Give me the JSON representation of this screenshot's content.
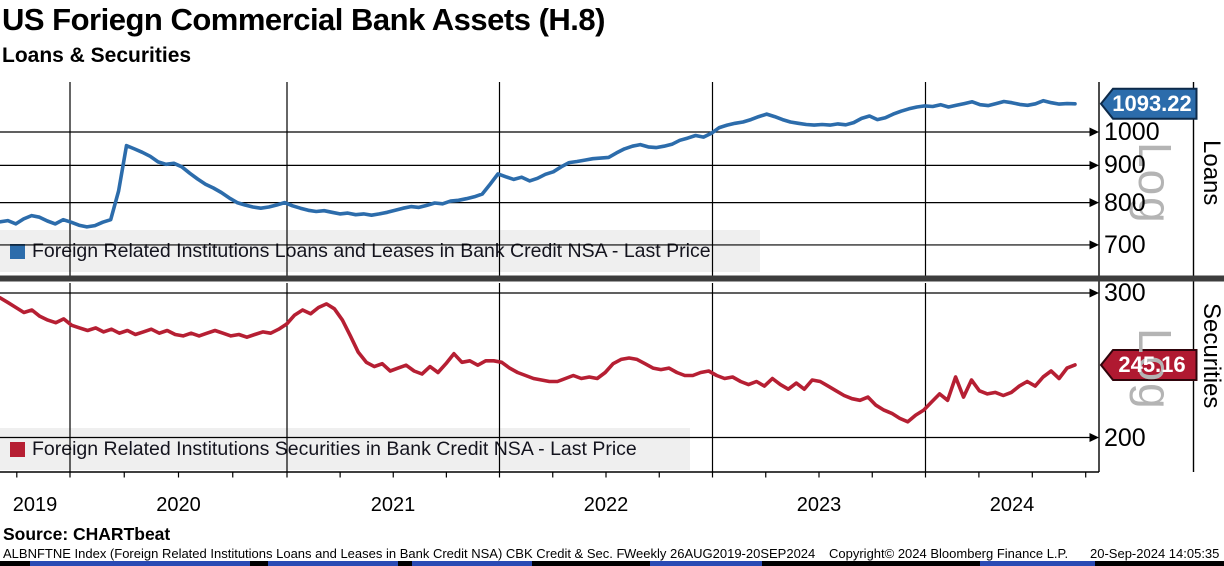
{
  "header": {
    "title": "US Foriegn Commercial Bank Assets (H.8)",
    "subtitle": "Loans & Securities"
  },
  "x_axis": {
    "years": [
      "2019",
      "2020",
      "2021",
      "2022",
      "2023",
      "2024"
    ]
  },
  "footer": {
    "source": "Source: CHARTbeat",
    "fine_print": "ALBNFTNE Index (Foreign Related Institutions Loans and Leases in Bank Credit NSA) CBK Credit & Sec. F",
    "period": "Weekly 26AUG2019-20SEP2024",
    "copyright": "Copyright© 2024 Bloomberg Finance L.P.",
    "timestamp": "20-Sep-2024 14:05:35"
  },
  "chart_data": [
    {
      "type": "line",
      "name": "loans",
      "legend": "Foreign Related Institutions Loans and Leases in Bank Credit NSA - Last Price",
      "axis_label": "Loans",
      "scale": "Log",
      "color": "#2c6cab",
      "flag_fill": "#2c6cab",
      "flag_border": "#0d2a4a",
      "last_price": 1093.22,
      "last_price_label": "1093.22",
      "yticks": [
        1000,
        900,
        800,
        700
      ],
      "ylog": true,
      "frequency": "Weekly",
      "x_start": "26AUG2019",
      "x_end": "20SEP2024",
      "values": [
        753,
        756,
        748,
        760,
        768,
        764,
        755,
        748,
        758,
        752,
        745,
        741,
        744,
        752,
        758,
        830,
        958,
        948,
        938,
        926,
        910,
        903,
        906,
        896,
        878,
        862,
        848,
        838,
        826,
        812,
        800,
        794,
        789,
        786,
        789,
        794,
        800,
        792,
        786,
        781,
        778,
        780,
        776,
        772,
        774,
        770,
        772,
        769,
        772,
        776,
        781,
        786,
        790,
        788,
        793,
        799,
        797,
        804,
        806,
        810,
        815,
        822,
        848,
        876,
        868,
        861,
        867,
        857,
        864,
        875,
        882,
        896,
        908,
        911,
        915,
        919,
        921,
        923,
        936,
        948,
        956,
        961,
        954,
        952,
        956,
        962,
        974,
        981,
        989,
        984,
        996,
        1014,
        1022,
        1028,
        1032,
        1040,
        1050,
        1058,
        1050,
        1040,
        1032,
        1028,
        1024,
        1022,
        1024,
        1022,
        1026,
        1023,
        1030,
        1044,
        1052,
        1040,
        1046,
        1058,
        1068,
        1076,
        1082,
        1086,
        1084,
        1090,
        1082,
        1088,
        1094,
        1100,
        1090,
        1087,
        1094,
        1101,
        1097,
        1091,
        1088,
        1093,
        1104,
        1097,
        1092,
        1094,
        1093.22
      ]
    },
    {
      "type": "line",
      "name": "securities",
      "legend": "Foreign Related Institutions Securities in Bank Credit NSA - Last Price",
      "axis_label": "Securities",
      "scale": "Log",
      "color": "#b61f33",
      "flag_fill": "#b01931",
      "flag_border": "#30050c",
      "last_price": 245.16,
      "last_price_label": "245.16",
      "yticks": [
        300,
        200
      ],
      "ylog": true,
      "frequency": "Weekly",
      "x_start": "26AUG2019",
      "x_end": "20SEP2024",
      "values": [
        296,
        292,
        288,
        284,
        286,
        281,
        278,
        276,
        279,
        274,
        272,
        270,
        272,
        269,
        271,
        268,
        270,
        267,
        269,
        271,
        268,
        270,
        267,
        266,
        268,
        266,
        268,
        270,
        268,
        266,
        267,
        265,
        267,
        269,
        268,
        271,
        275,
        282,
        286,
        283,
        288,
        291,
        287,
        278,
        266,
        254,
        247,
        244,
        246,
        241,
        243,
        245,
        241,
        239,
        244,
        240,
        246,
        253,
        247,
        248,
        245,
        248,
        248,
        247,
        243,
        240,
        238,
        236,
        235,
        234,
        234,
        236,
        238,
        236,
        237,
        236,
        240,
        246,
        249,
        250,
        249,
        246,
        243,
        242,
        243,
        240,
        238,
        238,
        240,
        241,
        238,
        236,
        237,
        234,
        232,
        234,
        231,
        236,
        232,
        229,
        233,
        229,
        235,
        234,
        231,
        228,
        225,
        223,
        222,
        224,
        219,
        216,
        214,
        211,
        209,
        213,
        216,
        221,
        226,
        222,
        237,
        224,
        235,
        228,
        226,
        227,
        225,
        227,
        231,
        234,
        231,
        237,
        241,
        236,
        243,
        245.16
      ]
    }
  ]
}
